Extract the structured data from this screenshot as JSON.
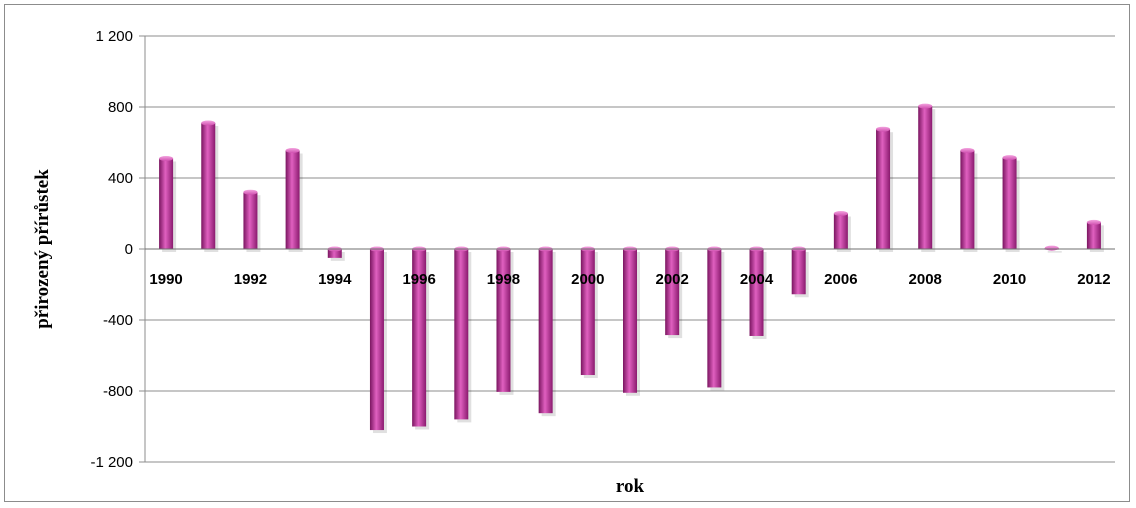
{
  "chart_data": {
    "type": "bar",
    "xlabel": "rok",
    "ylabel": "přirozený přírůstek",
    "ylim": [
      -1200,
      1200
    ],
    "yticks": [
      -1200,
      -800,
      -400,
      0,
      400,
      800,
      1200
    ],
    "ytick_labels": [
      "-1 200",
      "-800",
      "-400",
      "0",
      "400",
      "800",
      "1 200"
    ],
    "categories": [
      "1990",
      "1991",
      "1992",
      "1993",
      "1994",
      "1995",
      "1996",
      "1997",
      "1998",
      "1999",
      "2000",
      "2001",
      "2002",
      "2003",
      "2004",
      "2005",
      "2006",
      "2007",
      "2008",
      "2009",
      "2010",
      "2011",
      "2012"
    ],
    "category_labels_shown": [
      "1990",
      "",
      "1992",
      "",
      "1994",
      "",
      "1996",
      "",
      "1998",
      "",
      "2000",
      "",
      "2002",
      "",
      "2004",
      "",
      "2006",
      "",
      "2008",
      "",
      "2010",
      "",
      "2012"
    ],
    "values": [
      510,
      710,
      320,
      555,
      -50,
      -1020,
      -1000,
      -960,
      -805,
      -925,
      -710,
      -810,
      -485,
      -780,
      -490,
      -255,
      200,
      675,
      805,
      555,
      515,
      5,
      150
    ],
    "bar_color": "#c0288f",
    "grid": true,
    "legend": "none"
  }
}
